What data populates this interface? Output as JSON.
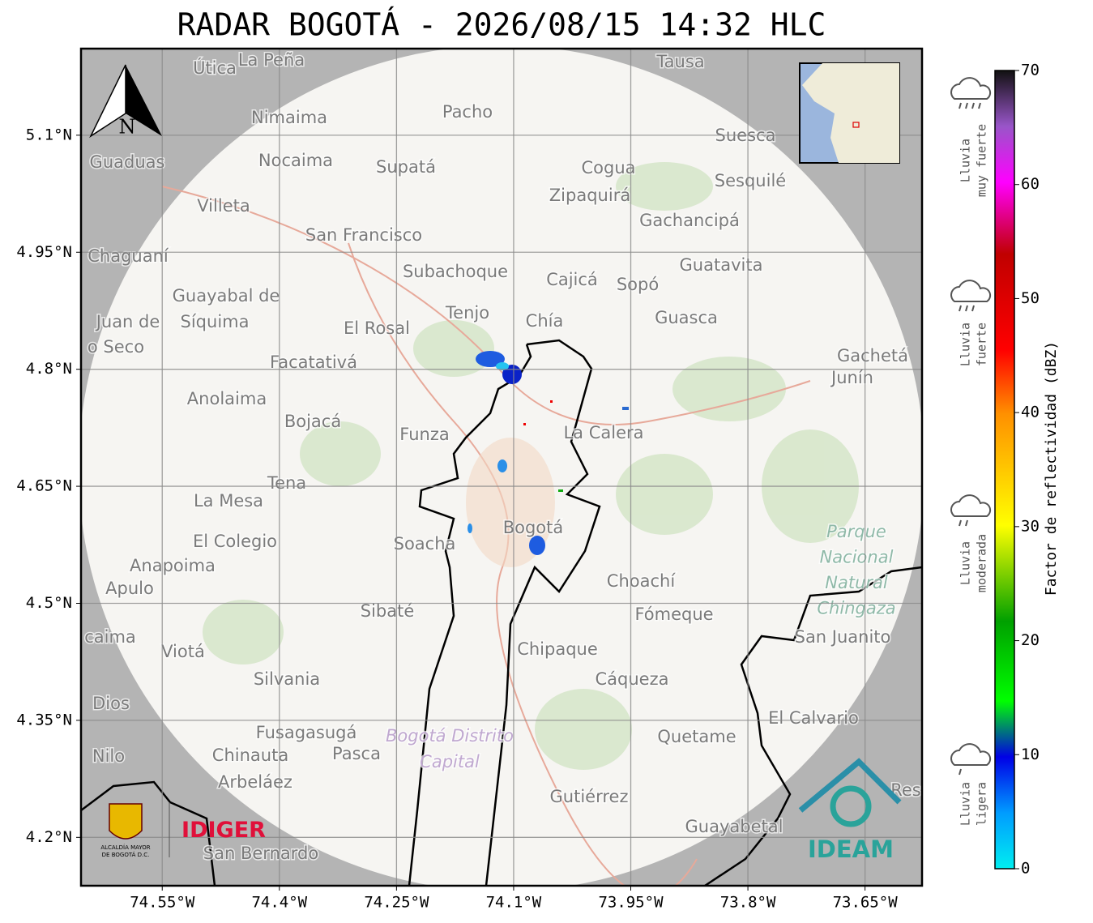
{
  "title": "RADAR BOGOTÁ - 2026/08/15 14:32 HLC",
  "map": {
    "lonlim": [
      -74.654,
      -73.577
    ],
    "latlim": [
      4.138,
      5.211
    ],
    "lon_ticks": [
      {
        "value": -74.55,
        "label": "74.55°W"
      },
      {
        "value": -74.4,
        "label": "74.4°W"
      },
      {
        "value": -74.25,
        "label": "74.25°W"
      },
      {
        "value": -74.1,
        "label": "74.1°W"
      },
      {
        "value": -73.95,
        "label": "73.95°W"
      },
      {
        "value": -73.8,
        "label": "73.8°W"
      },
      {
        "value": -73.65,
        "label": "73.65°W"
      }
    ],
    "lat_ticks": [
      {
        "value": 5.1,
        "label": "5.1°N"
      },
      {
        "value": 4.95,
        "label": "4.95°N"
      },
      {
        "value": 4.8,
        "label": "4.8°N"
      },
      {
        "value": 4.65,
        "label": "4.65°N"
      },
      {
        "value": 4.5,
        "label": "4.5°N"
      },
      {
        "value": 4.35,
        "label": "4.35°N"
      },
      {
        "value": 4.2,
        "label": "4.2°N"
      }
    ],
    "places": [
      "Útica",
      "La Peña",
      "Tausa",
      "Nimaima",
      "Pacho",
      "Guaduas",
      "Nocaima",
      "Supatá",
      "Cogua",
      "Suesca",
      "Sesquilé",
      "Zipaquirá",
      "Villeta",
      "Gachancipá",
      "San Francisco",
      "Chaguaní",
      "Subachoque",
      "Guatavita",
      "Cajicá",
      "Sopó",
      "Guayabal de",
      "Tenjo",
      "Chía",
      "Guasca",
      "Juan de",
      "Síquima",
      "El Rosal",
      "o Seco",
      "Facatativá",
      "Gachetá",
      "Junín",
      "Anolaima",
      "Bojacá",
      "Funza",
      "La Calera",
      "Tena",
      "La Mesa",
      "Bogotá",
      "El Colegio",
      "Soacha",
      "Anapoima",
      "Apulo",
      "Choachí",
      "Sibaté",
      "Fómeque",
      "San Juanito",
      "caima",
      "Viotá",
      "Chipaque",
      "Silvania",
      "Cáqueza",
      "Dios",
      "El Calvario",
      "Fusagasugá",
      "Quetame",
      "Nilo",
      "Chinauta",
      "Pasca",
      "Arbeláez",
      "Res",
      "Gutiérrez",
      "Guayabetal",
      "San Bernardo"
    ],
    "park_lines": [
      "Parque",
      "Nacional",
      "Natural",
      "Chingaza"
    ],
    "district_lines": [
      "Bogotá Distrito",
      "Capital"
    ],
    "north_label": "N"
  },
  "logos": {
    "alcaldia": [
      "ALCALDÍA MAYOR",
      "DE BOGOTÁ D.C."
    ],
    "idiger": "IDIGER",
    "ideam": "IDEAM"
  },
  "colorbar": {
    "label": "Factor de reflectividad (dBZ)",
    "lim": [
      0,
      70
    ],
    "ticks": [
      0,
      10,
      20,
      30,
      40,
      50,
      60,
      70
    ]
  },
  "rain_levels": [
    {
      "lines": [
        "Lluvia",
        "muy fuerte"
      ]
    },
    {
      "lines": [
        "Lluvia",
        "fuerte"
      ]
    },
    {
      "lines": [
        "Lluvia",
        "moderada"
      ]
    },
    {
      "lines": [
        "Lluvia",
        "ligera"
      ]
    }
  ]
}
